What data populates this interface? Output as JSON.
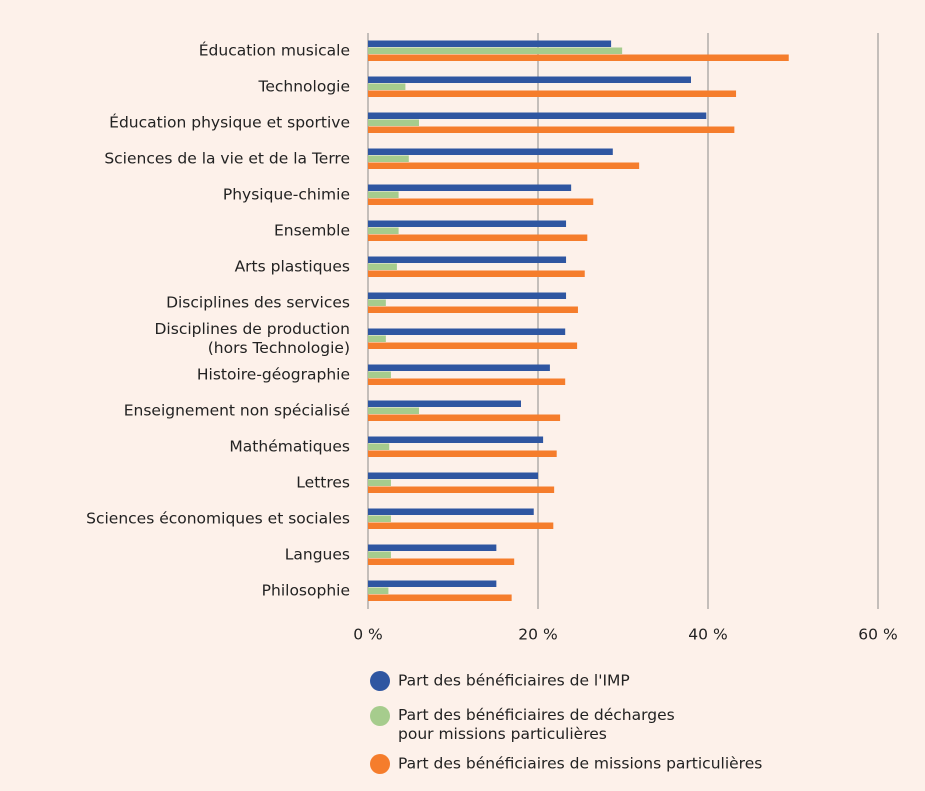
{
  "chart_data": {
    "type": "bar",
    "orientation": "horizontal",
    "categories": [
      "Éducation musicale",
      "Technologie",
      "Éducation physique et sportive",
      "Sciences de la vie et de la Terre",
      "Physique-chimie",
      "Ensemble",
      "Arts plastiques",
      "Disciplines des services",
      "Disciplines de production\n(hors Technologie)",
      "Histoire-géographie",
      "Enseignement non spécialisé",
      "Mathématiques",
      "Lettres",
      "Sciences économiques et sociales",
      "Langues",
      "Philosophie"
    ],
    "series": [
      {
        "name": "Part des bénéficiaires de l'IMP",
        "color": "#2f56a1",
        "values": [
          28.6,
          38.0,
          39.8,
          28.8,
          23.9,
          23.3,
          23.3,
          23.3,
          23.2,
          21.4,
          18.0,
          20.6,
          20.0,
          19.5,
          15.1,
          15.1
        ]
      },
      {
        "name": "Part des bénéficiaires de décharges\npour missions particulières",
        "color": "#a6cc8d",
        "values": [
          29.9,
          4.4,
          6.0,
          4.8,
          3.6,
          3.6,
          3.4,
          2.1,
          2.1,
          2.7,
          6.0,
          2.5,
          2.7,
          2.7,
          2.7,
          2.4
        ]
      },
      {
        "name": "Part des bénéficiaires de missions particulières",
        "color": "#f57d2c",
        "values": [
          49.5,
          43.3,
          43.1,
          31.9,
          26.5,
          25.8,
          25.5,
          24.7,
          24.6,
          23.2,
          22.6,
          22.2,
          21.9,
          21.8,
          17.2,
          16.9
        ]
      }
    ],
    "xlim": [
      0,
      60
    ],
    "xticks": [
      {
        "value": 0,
        "label": "0 %"
      },
      {
        "value": 20,
        "label": "20 %"
      },
      {
        "value": 40,
        "label": "40 %"
      },
      {
        "value": 60,
        "label": "60 %"
      }
    ],
    "grid": true
  }
}
